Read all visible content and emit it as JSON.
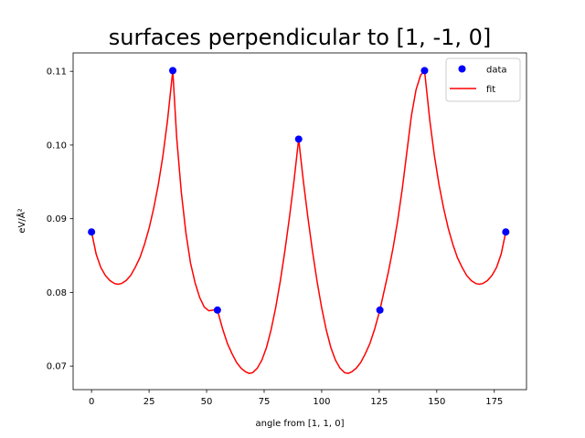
{
  "chart_data": {
    "type": "line",
    "title": "surfaces perpendicular to [1, -1, 0]",
    "xlabel": "angle from [1, 1, 0]",
    "ylabel": "eV/Å²",
    "xlim": [
      -8,
      189
    ],
    "ylim": [
      0.0668,
      0.1125
    ],
    "x_ticks": [
      0,
      25,
      50,
      75,
      100,
      125,
      150,
      175
    ],
    "y_ticks": [
      0.07,
      0.08,
      0.09,
      0.1,
      0.11
    ],
    "x_tick_labels": [
      "0",
      "25",
      "50",
      "75",
      "100",
      "125",
      "150",
      "175"
    ],
    "y_tick_labels": [
      "0.07",
      "0.08",
      "0.09",
      "0.10",
      "0.11"
    ],
    "grid": false,
    "legend": {
      "position": "top-right",
      "entries": [
        "data",
        "fit"
      ]
    },
    "series": [
      {
        "name": "data",
        "kind": "scatter",
        "color": "#0000ff",
        "x": [
          0,
          35.3,
          54.7,
          90,
          125.3,
          144.7,
          180
        ],
        "y": [
          0.0882,
          0.1101,
          0.0776,
          0.1008,
          0.0776,
          0.1101,
          0.0882
        ]
      },
      {
        "name": "fit",
        "kind": "line",
        "color": "#ff0000",
        "x": [
          0,
          2,
          4,
          6,
          8,
          10,
          11.5,
          13,
          15,
          17,
          19,
          21,
          23,
          25,
          27,
          29,
          31,
          33,
          35.3,
          37,
          39,
          41,
          43,
          45,
          47,
          49,
          51,
          53,
          54.7,
          57,
          59,
          61,
          63,
          65,
          67,
          68.5,
          70,
          72,
          74,
          76,
          78,
          80,
          82,
          84,
          86,
          88,
          90,
          92,
          94,
          96,
          98,
          100,
          102,
          104,
          106,
          108,
          110,
          111.5,
          113,
          115,
          117,
          119,
          121,
          123,
          125.3,
          127,
          129,
          131,
          133,
          135,
          137,
          139,
          141,
          143,
          144.7,
          147,
          149,
          151,
          153,
          155,
          157,
          159,
          161,
          163,
          165,
          167,
          168.5,
          170,
          172,
          174,
          176,
          178,
          180
        ],
        "y": [
          0.0882,
          0.0852,
          0.0834,
          0.0823,
          0.0816,
          0.0812,
          0.0811,
          0.0812,
          0.0816,
          0.0823,
          0.0834,
          0.0847,
          0.0865,
          0.0887,
          0.0914,
          0.0946,
          0.0985,
          0.1033,
          0.1101,
          0.101,
          0.0936,
          0.0881,
          0.084,
          0.0813,
          0.0793,
          0.078,
          0.0775,
          0.0776,
          0.0776,
          0.075,
          0.0731,
          0.0717,
          0.0705,
          0.0697,
          0.0692,
          0.069,
          0.0691,
          0.0697,
          0.0708,
          0.0725,
          0.0749,
          0.0779,
          0.0815,
          0.0856,
          0.0902,
          0.0952,
          0.1008,
          0.0952,
          0.0902,
          0.0856,
          0.0815,
          0.0779,
          0.0749,
          0.0725,
          0.0708,
          0.0697,
          0.0691,
          0.069,
          0.0692,
          0.0697,
          0.0705,
          0.0717,
          0.0731,
          0.075,
          0.0776,
          0.08,
          0.0828,
          0.086,
          0.0897,
          0.094,
          0.099,
          0.104,
          0.1075,
          0.1095,
          0.1101,
          0.1033,
          0.0985,
          0.0946,
          0.0914,
          0.0887,
          0.0865,
          0.0847,
          0.0834,
          0.0823,
          0.0816,
          0.0812,
          0.0811,
          0.0812,
          0.0816,
          0.0823,
          0.0834,
          0.0852,
          0.0882
        ]
      }
    ]
  }
}
